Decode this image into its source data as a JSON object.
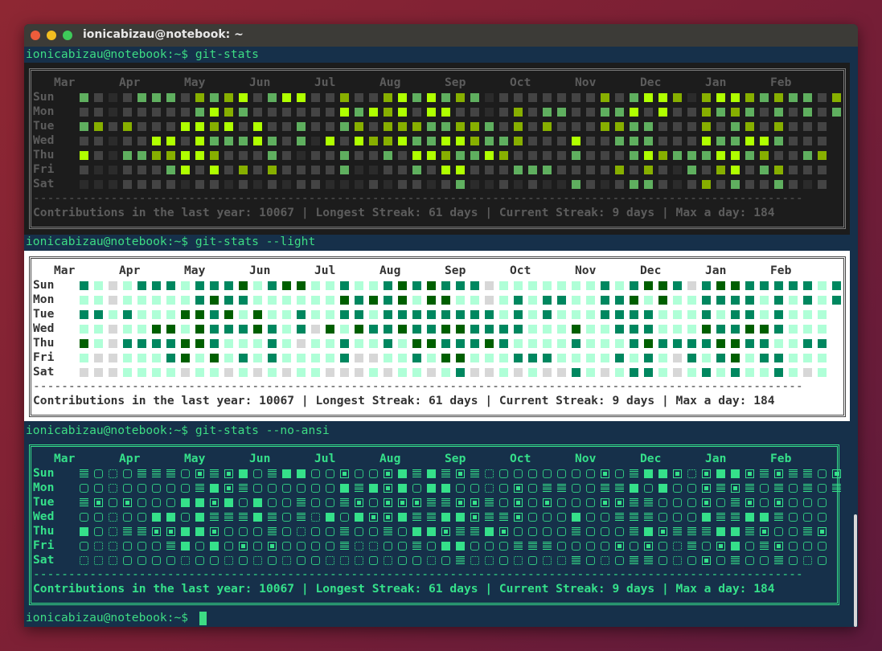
{
  "window": {
    "title": "ionicabizau@notebook: ~"
  },
  "prompt": "ionicabizau@notebook:~$",
  "commands": [
    "git-stats",
    "git-stats --light",
    "git-stats --no-ansi"
  ],
  "months": [
    "Mar",
    "Apr",
    "May",
    "Jun",
    "Jul",
    "Aug",
    "Sep",
    "Oct",
    "Nov",
    "Dec",
    "Jan",
    "Feb"
  ],
  "days": [
    "Sun",
    "Mon",
    "Tue",
    "Wed",
    "Thu",
    "Fri",
    "Sat"
  ],
  "contributions": {
    "levels_by_day": [
      "21012221323412441131134242320111111131244303443232213",
      "11011111243211111142434144110131221122414113232121212",
      "2313111443414112112313332233213131113322111312313111",
      "1101144142224212041433422443223111411222111422442111",
      "4102233443111210112112144322431111211124322244231123",
      "1001112414131311112001121441112221111313102134123111",
      "0001111011010101100010110120010100210122101312112101"
    ]
  },
  "summary": "Contributions in the last year: 10067 | Longest Streak: 61 days | Current Streak: 9 days | Max a day: 184",
  "colors": {
    "prompt": "#3ddc84",
    "dark_theme": [
      "#2b2b2b",
      "#444444",
      "#5faf5f",
      "#87af00",
      "#afff00"
    ],
    "light_theme": [
      "#d7d7d7",
      "#afffd7",
      "#00875f",
      "#00875f",
      "#005f00"
    ],
    "no_ansi": "#35e08a"
  }
}
